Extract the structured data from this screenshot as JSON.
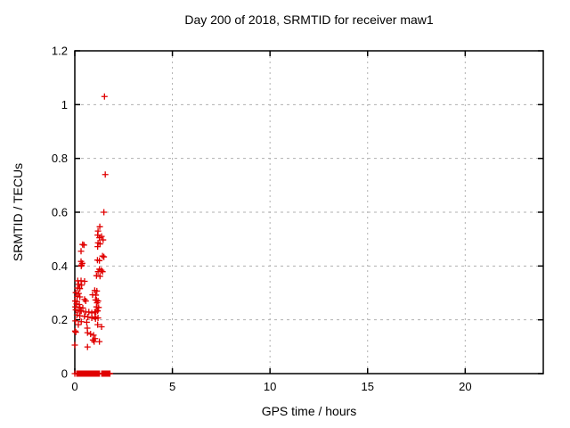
{
  "window": {
    "background": "#ffffff"
  },
  "chart_data": {
    "type": "scatter",
    "title": "Day 200 of 2018, SRMTID for receiver maw1",
    "xlabel": "GPS time / hours",
    "ylabel": "SRMTID / TECUs",
    "xlim": [
      0,
      24
    ],
    "ylim": [
      0,
      1.2
    ],
    "xticks": [
      0,
      5,
      10,
      15,
      20
    ],
    "xtick_labels": [
      "0",
      "5",
      "10",
      "15",
      "20"
    ],
    "yticks": [
      0,
      0.2,
      0.4,
      0.6,
      0.8,
      1,
      1.2
    ],
    "ytick_labels": [
      "0",
      "0.2",
      "0.4",
      "0.6",
      "0.8",
      "1",
      "1.2"
    ],
    "grid": true,
    "grid_color": "#b0b0b0",
    "border_color": "#000000",
    "legend_position": "none",
    "marker": {
      "shape": "plus",
      "color": "#e00000",
      "size": 7
    },
    "series": [
      {
        "name": "SRMTID",
        "points": [
          [
            1.52,
            1.03
          ],
          [
            1.56,
            0.74
          ],
          [
            1.49,
            0.6
          ],
          [
            1.28,
            0.546
          ],
          [
            1.19,
            0.53
          ],
          [
            1.17,
            0.515
          ],
          [
            1.37,
            0.51
          ],
          [
            1.26,
            0.505
          ],
          [
            1.45,
            0.497
          ],
          [
            1.19,
            0.486
          ],
          [
            1.29,
            0.482
          ],
          [
            1.17,
            0.472
          ],
          [
            1.42,
            0.437
          ],
          [
            1.49,
            0.434
          ],
          [
            1.16,
            0.422
          ],
          [
            1.26,
            0.42
          ],
          [
            0.4,
            0.48
          ],
          [
            0.47,
            0.478
          ],
          [
            0.32,
            0.455
          ],
          [
            0.32,
            0.417
          ],
          [
            0.38,
            0.41
          ],
          [
            0.35,
            0.404
          ],
          [
            0.33,
            0.4
          ],
          [
            1.26,
            0.388
          ],
          [
            1.36,
            0.384
          ],
          [
            1.19,
            0.379
          ],
          [
            1.42,
            0.379
          ],
          [
            1.11,
            0.364
          ],
          [
            1.29,
            0.362
          ],
          [
            0.15,
            0.345
          ],
          [
            0.32,
            0.345
          ],
          [
            0.5,
            0.343
          ],
          [
            0.2,
            0.332
          ],
          [
            0.35,
            0.329
          ],
          [
            0.14,
            0.318
          ],
          [
            0.26,
            0.316
          ],
          [
            1.02,
            0.309
          ],
          [
            1.13,
            0.307
          ],
          [
            0.05,
            0.301
          ],
          [
            0.2,
            0.298
          ],
          [
            0.91,
            0.293
          ],
          [
            1.08,
            0.292
          ],
          [
            0.12,
            0.287
          ],
          [
            0.26,
            0.285
          ],
          [
            0.5,
            0.276
          ],
          [
            1.06,
            0.274
          ],
          [
            1.11,
            0.273
          ],
          [
            1.19,
            0.27
          ],
          [
            0.02,
            0.27
          ],
          [
            0.11,
            0.268
          ],
          [
            0.56,
            0.27
          ],
          [
            1.14,
            0.263
          ],
          [
            0.09,
            0.259
          ],
          [
            0.23,
            0.257
          ],
          [
            1.11,
            0.248
          ],
          [
            1.22,
            0.246
          ],
          [
            0.03,
            0.248
          ],
          [
            0.26,
            0.246
          ],
          [
            0.41,
            0.244
          ],
          [
            0.05,
            0.237
          ],
          [
            0.18,
            0.235
          ],
          [
            0.33,
            0.233
          ],
          [
            1.17,
            0.233
          ],
          [
            0.27,
            0.232
          ],
          [
            0.56,
            0.229
          ],
          [
            0.72,
            0.229
          ],
          [
            1.02,
            0.229
          ],
          [
            1.08,
            0.229
          ],
          [
            0.87,
            0.226
          ],
          [
            0.11,
            0.218
          ],
          [
            0.26,
            0.215
          ],
          [
            0.49,
            0.213
          ],
          [
            1.04,
            0.211
          ],
          [
            0.67,
            0.211
          ],
          [
            0.87,
            0.207
          ],
          [
            1.19,
            0.207
          ],
          [
            1.06,
            0.204
          ],
          [
            0.03,
            0.196
          ],
          [
            0.33,
            0.193
          ],
          [
            0.61,
            0.191
          ],
          [
            0.18,
            0.182
          ],
          [
            1.17,
            0.182
          ],
          [
            1.37,
            0.174
          ],
          [
            0.64,
            0.169
          ],
          [
            0.02,
            0.158
          ],
          [
            0.05,
            0.154
          ],
          [
            0.65,
            0.152
          ],
          [
            0.81,
            0.147
          ],
          [
            0.96,
            0.143
          ],
          [
            1.04,
            0.13
          ],
          [
            0.93,
            0.125
          ],
          [
            0.99,
            0.119
          ],
          [
            1.26,
            0.119
          ],
          [
            0.0,
            0.106
          ],
          [
            0.65,
            0.099
          ],
          [
            0.0,
            0.0
          ]
        ]
      }
    ],
    "zero_value_runs": [
      {
        "x_from": 0.1,
        "x_to": 1.27,
        "step": 0.02,
        "y": 0
      },
      {
        "x_from": 1.38,
        "x_to": 1.8,
        "step": 0.02,
        "y": 0
      }
    ]
  }
}
